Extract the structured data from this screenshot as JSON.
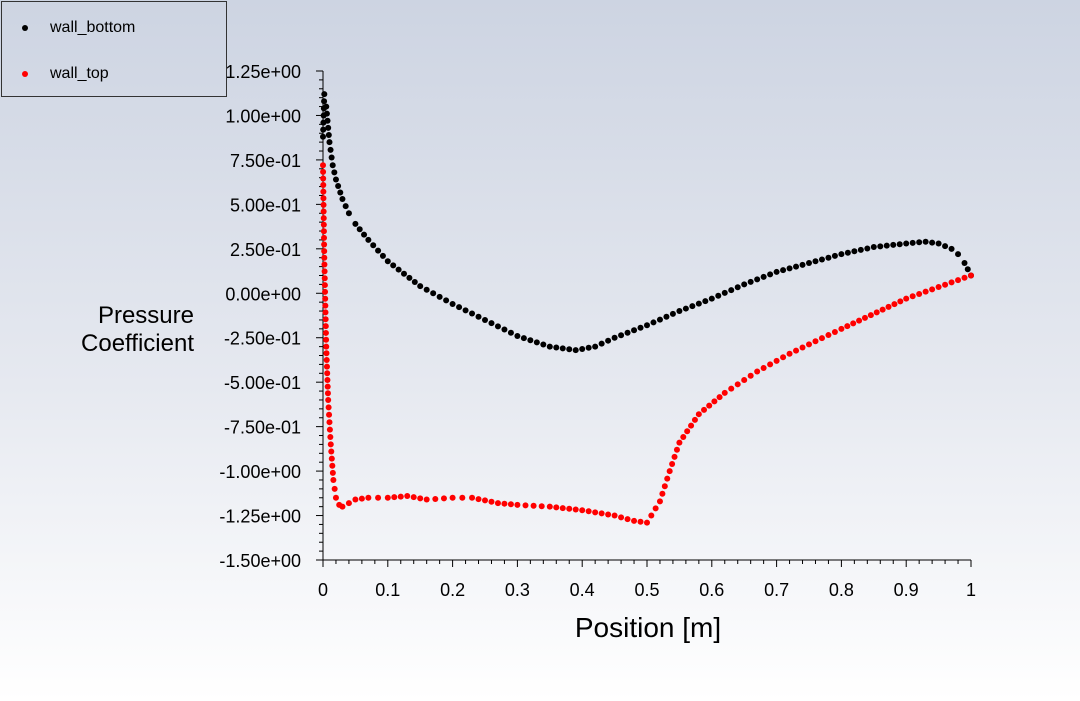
{
  "chart_data": {
    "type": "scatter",
    "xlabel": "Position [m]",
    "ylabel_lines": [
      "Pressure",
      "Coefficient"
    ],
    "xlim": [
      0,
      1
    ],
    "ylim": [
      -1.5,
      1.25
    ],
    "x_ticks": [
      "0",
      "0.1",
      "0.2",
      "0.3",
      "0.4",
      "0.5",
      "0.6",
      "0.7",
      "0.8",
      "0.9",
      "1"
    ],
    "y_ticks": [
      "1.25e+00",
      "1.00e+00",
      "7.50e-01",
      "5.00e-01",
      "2.50e-01",
      "0.00e+00",
      "-2.50e-01",
      "-5.00e-01",
      "-7.50e-01",
      "-1.00e+00",
      "-1.25e+00",
      "-1.50e+00"
    ],
    "grid": false,
    "legend_position": "top-left",
    "series": [
      {
        "name": "wall_bottom",
        "color": "#000000",
        "x": [
          0.0,
          0.002,
          0.005,
          0.01,
          0.015,
          0.02,
          0.03,
          0.04,
          0.05,
          0.07,
          0.1,
          0.15,
          0.2,
          0.25,
          0.3,
          0.35,
          0.39,
          0.42,
          0.45,
          0.5,
          0.55,
          0.6,
          0.65,
          0.7,
          0.75,
          0.8,
          0.85,
          0.9,
          0.93,
          0.95,
          0.97,
          0.98,
          0.99,
          1.0
        ],
        "y": [
          0.88,
          1.12,
          1.05,
          0.85,
          0.72,
          0.64,
          0.53,
          0.45,
          0.39,
          0.3,
          0.18,
          0.04,
          -0.06,
          -0.15,
          -0.24,
          -0.3,
          -0.32,
          -0.3,
          -0.25,
          -0.18,
          -0.1,
          -0.03,
          0.05,
          0.12,
          0.17,
          0.22,
          0.26,
          0.28,
          0.29,
          0.28,
          0.25,
          0.22,
          0.17,
          0.1
        ]
      },
      {
        "name": "wall_top",
        "color": "#ff0000",
        "x": [
          0.0,
          0.002,
          0.005,
          0.008,
          0.012,
          0.016,
          0.02,
          0.025,
          0.03,
          0.04,
          0.05,
          0.07,
          0.1,
          0.13,
          0.16,
          0.2,
          0.23,
          0.27,
          0.3,
          0.35,
          0.4,
          0.45,
          0.48,
          0.5,
          0.52,
          0.535,
          0.55,
          0.58,
          0.62,
          0.67,
          0.72,
          0.8,
          0.9,
          1.0
        ],
        "y": [
          0.72,
          0.2,
          -0.3,
          -0.6,
          -0.85,
          -1.05,
          -1.15,
          -1.19,
          -1.2,
          -1.18,
          -1.16,
          -1.15,
          -1.15,
          -1.14,
          -1.16,
          -1.15,
          -1.15,
          -1.18,
          -1.19,
          -1.2,
          -1.22,
          -1.25,
          -1.28,
          -1.29,
          -1.17,
          -1.0,
          -0.84,
          -0.68,
          -0.56,
          -0.44,
          -0.34,
          -0.2,
          -0.03,
          0.1
        ]
      }
    ]
  }
}
